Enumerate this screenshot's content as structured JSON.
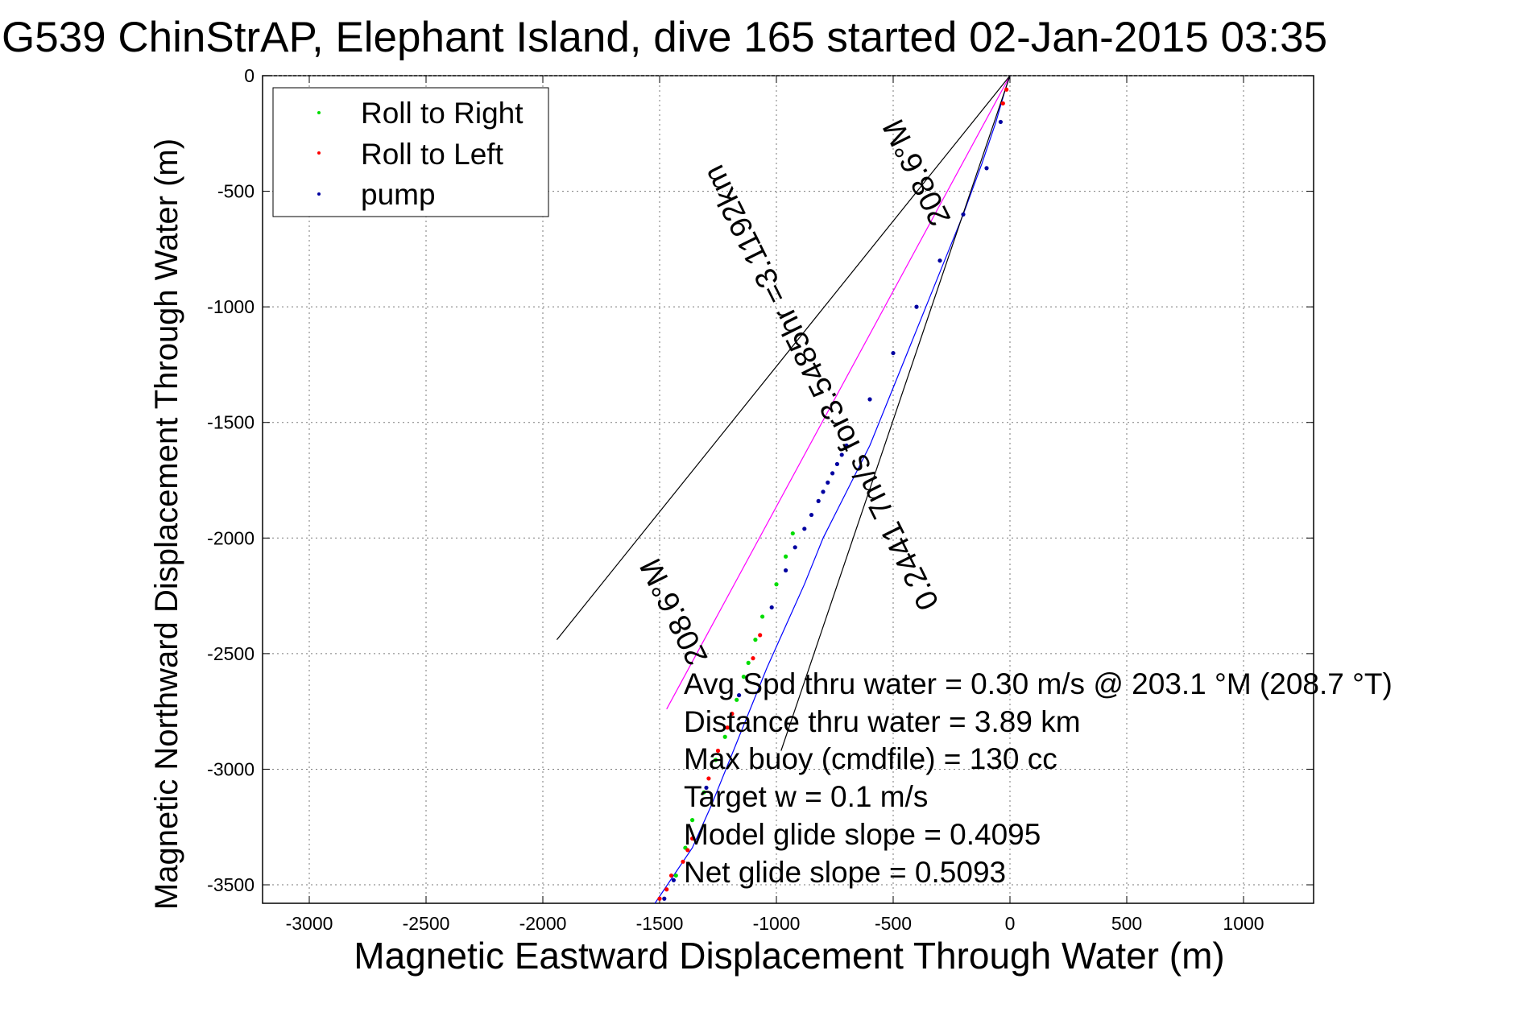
{
  "chart_data": {
    "type": "scatter",
    "title": "G539 ChinStrAP, Elephant Island, dive 165 started 02-Jan-2015 03:35",
    "xlabel": "Magnetic Eastward Displacement Through Water (m)",
    "ylabel": "Magnetic Northward Displacement Through Water (m)",
    "xlim": [
      -3200,
      1300
    ],
    "ylim": [
      -3580,
      0
    ],
    "xticks": [
      -3000,
      -2500,
      -2000,
      -1500,
      -1000,
      -500,
      0,
      500,
      1000
    ],
    "yticks": [
      0,
      -500,
      -1000,
      -1500,
      -2000,
      -2500,
      -3000,
      -3500
    ],
    "grid": true,
    "legend": {
      "position": "top-left",
      "entries": [
        {
          "label": "Roll to Right",
          "color": "#00dd00"
        },
        {
          "label": "Roll to Left",
          "color": "#ff0000"
        },
        {
          "label": "pump",
          "color": "#0000a0"
        }
      ]
    },
    "lines": [
      {
        "name": "track",
        "color": "#0000ff",
        "x": [
          0,
          -20,
          -60,
          -120,
          -200,
          -280,
          -360,
          -440,
          -520,
          -600,
          -700,
          -800,
          -880,
          -960,
          -1040,
          -1120,
          -1200,
          -1280,
          -1360,
          -1440,
          -1520
        ],
        "y": [
          0,
          -60,
          -200,
          -380,
          -600,
          -800,
          -1000,
          -1200,
          -1400,
          -1600,
          -1800,
          -2000,
          -2200,
          -2380,
          -2560,
          -2760,
          -2960,
          -3160,
          -3340,
          -3460,
          -3580
        ]
      },
      {
        "name": "current direction",
        "color": "#ff00ff",
        "x": [
          0,
          -1470
        ],
        "y": [
          0,
          -2740
        ]
      },
      {
        "name": "bracket left",
        "color": "#000000",
        "x": [
          0,
          -1940
        ],
        "y": [
          0,
          -2440
        ]
      },
      {
        "name": "bracket right",
        "color": "#000000",
        "x": [
          0,
          -980
        ],
        "y": [
          0,
          -2920
        ]
      }
    ],
    "series": [
      {
        "name": "Roll to Right",
        "color": "#00dd00",
        "x": [
          -1430,
          -1390,
          -1360,
          -1310,
          -1260,
          -1220,
          -1200,
          -1170,
          -1140,
          -1120,
          -1090,
          -1060,
          -1000,
          -960,
          -930
        ],
        "y": [
          -3460,
          -3340,
          -3220,
          -3100,
          -2960,
          -2860,
          -2820,
          -2700,
          -2600,
          -2540,
          -2440,
          -2340,
          -2200,
          -2080,
          -1980
        ]
      },
      {
        "name": "Roll to Left",
        "color": "#ff0000",
        "x": [
          -1500,
          -1470,
          -1450,
          -1400,
          -1380,
          -1360,
          -1290,
          -1250,
          -1210,
          -1190,
          -1100,
          -1070,
          -30,
          -15
        ],
        "y": [
          -3560,
          -3520,
          -3460,
          -3400,
          -3350,
          -3300,
          -3040,
          -2920,
          -2820,
          -2760,
          -2520,
          -2420,
          -120,
          -60
        ]
      },
      {
        "name": "pump",
        "color": "#0000a0",
        "x": [
          -1480,
          -1440,
          -1300,
          -1160,
          -1020,
          -960,
          -920,
          -880,
          -850,
          -820,
          -800,
          -780,
          -760,
          -740,
          -720,
          -700,
          -600,
          -500,
          -400,
          -300,
          -200,
          -100,
          -40
        ],
        "y": [
          -3560,
          -3480,
          -3080,
          -2680,
          -2300,
          -2140,
          -2040,
          -1960,
          -1900,
          -1840,
          -1800,
          -1760,
          -1720,
          -1680,
          -1640,
          -1600,
          -1400,
          -1200,
          -1000,
          -800,
          -600,
          -400,
          -200
        ]
      }
    ],
    "annotations": [
      {
        "text": "208.6°M",
        "x": -1400,
        "y": -2300,
        "rotation_deg": 243.6
      },
      {
        "text": "0.2441 7m/s for3.5485hr =3.1192km",
        "x": -770,
        "y": -1330,
        "rotation_deg": 243.6
      },
      {
        "text": "208.6°M",
        "x": -360,
        "y": -400,
        "rotation_deg": 243.6
      }
    ],
    "stats_lines": [
      "Avg Spd thru water     =  0.30 m/s @ 203.1 °M (208.7 °T)",
      "Distance thru water    =  3.89 km",
      "Max buoy (cmdfile)       = 130 cc",
      "Target w    = 0.1 m/s",
      "Model glide slope        = 0.4095",
      "Net glide slope            = 0.5093"
    ]
  }
}
